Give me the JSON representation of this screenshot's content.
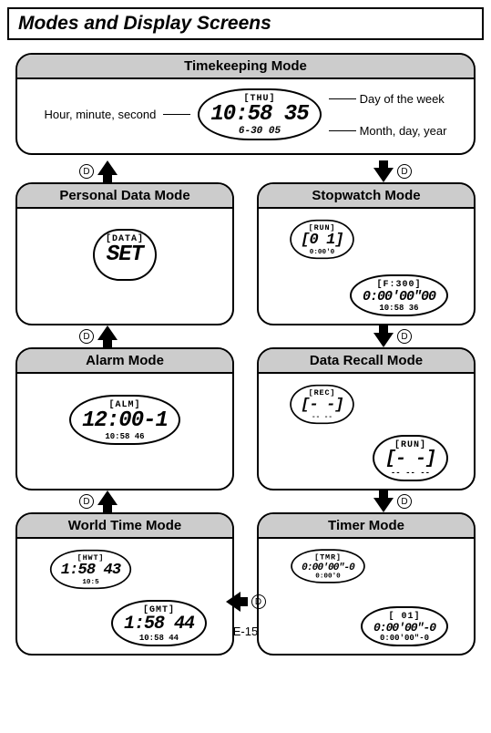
{
  "page": {
    "title": "Modes and Display Screens",
    "page_number": "E-15"
  },
  "nav_button_label": "D",
  "timekeeping": {
    "header": "Timekeeping Mode",
    "callout_left": "Hour, minute, second",
    "callout_right_top": "Day of the week",
    "callout_right_bottom": "Month, day, year",
    "lcd_top": "[THU]",
    "lcd_main": "10:58 35",
    "lcd_sub": "6-30   05"
  },
  "personal": {
    "header": "Personal Data Mode",
    "lcd_top": "[DATA]",
    "lcd_main": "SET"
  },
  "stopwatch": {
    "header": "Stopwatch Mode",
    "back_top": "[RUN]",
    "back_main": "[0 1]",
    "back_sub": "0:00'0",
    "front_top": "[F:300]",
    "front_main": "0:00'00\"00",
    "front_sub": "10:58 36"
  },
  "alarm": {
    "header": "Alarm Mode",
    "lcd_top": "[ALM]",
    "lcd_main": "12:00-1",
    "lcd_sub": "10:58 46"
  },
  "datarecall": {
    "header": "Data Recall Mode",
    "back_top": "[REC]",
    "back_main": "[- -]",
    "back_sub": "-- --",
    "front_top": "[RUN]",
    "front_main": "[- -]",
    "front_sub": "-- --  --"
  },
  "worldtime": {
    "header": "World Time Mode",
    "back_top": "[HWT]",
    "back_main": "1:58 43",
    "back_sub": "10:5",
    "front_top": "[GMT]",
    "front_main": "1:58 44",
    "front_sub": "10:58 44"
  },
  "timer": {
    "header": "Timer Mode",
    "back_top": "[TMR]",
    "back_main": "0:00'00\"-0",
    "back_sub": "0:00'0",
    "front_top": "[ 01]",
    "front_main": "0:00'00\"-0",
    "front_sub": "0:00'00\"-0"
  }
}
